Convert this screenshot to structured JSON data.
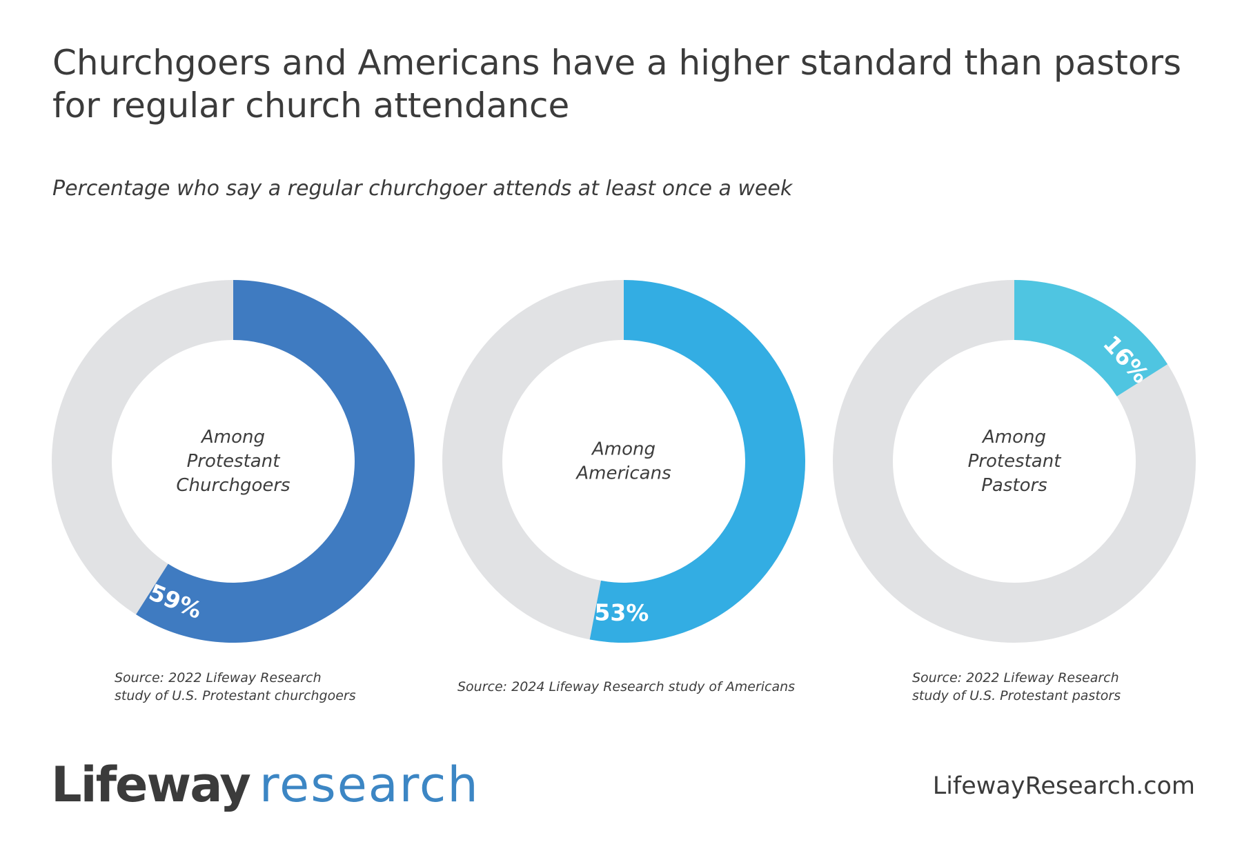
{
  "title": "Churchgoers and Americans have a higher standard than pastors for regular church attendance",
  "subtitle": "Percentage who say a regular churchgoer attends at least once a week",
  "chart_data": [
    {
      "type": "pie",
      "title": "Among Protestant Churchgoers",
      "center_lines": [
        "Among",
        "Protestant",
        "Churchgoers"
      ],
      "value": 59,
      "label": "59%",
      "color": "#3f7bc1",
      "track_color": "#e1e2e4",
      "source_lines": [
        "Source: 2022 Lifeway Research",
        "study of U.S. Protestant churchgoers"
      ]
    },
    {
      "type": "pie",
      "title": "Among Americans",
      "center_lines": [
        "Among",
        "Americans"
      ],
      "value": 53,
      "label": "53%",
      "color": "#33ade3",
      "track_color": "#e1e2e4",
      "source_lines": [
        "Source: 2024 Lifeway Research study of Americans"
      ]
    },
    {
      "type": "pie",
      "title": "Among Protestant Pastors",
      "center_lines": [
        "Among",
        "Protestant",
        "Pastors"
      ],
      "value": 16,
      "label": "16%",
      "color": "#4fc5e1",
      "track_color": "#e1e2e4",
      "source_lines": [
        "Source: 2022 Lifeway Research",
        "study of U.S. Protestant pastors"
      ]
    }
  ],
  "footer": {
    "logo_part1": "Lifeway",
    "logo_part2": "research",
    "website": "LifewayResearch.com"
  }
}
